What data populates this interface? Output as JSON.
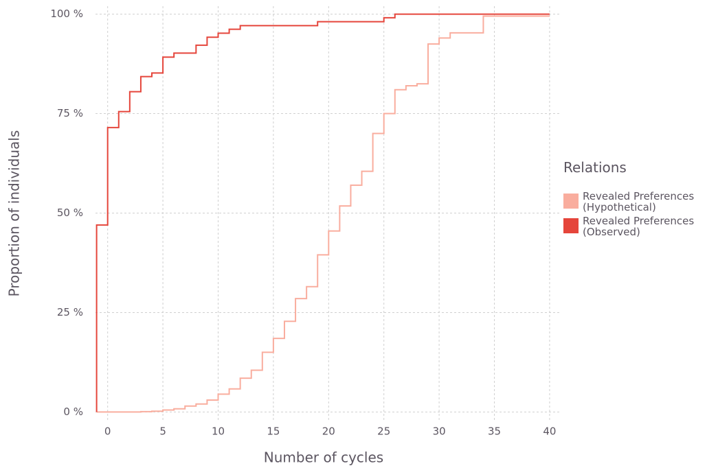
{
  "chart_data": {
    "type": "step",
    "xlabel": "Number of cycles",
    "ylabel": "Proportion of individuals",
    "legend_title": "Relations",
    "x": [
      -1,
      0,
      1,
      2,
      3,
      4,
      5,
      6,
      7,
      8,
      9,
      10,
      11,
      12,
      13,
      14,
      15,
      16,
      17,
      18,
      19,
      20,
      21,
      22,
      23,
      24,
      25,
      26,
      27,
      28,
      29,
      30,
      31,
      32,
      33,
      34,
      35,
      36,
      37,
      38,
      39,
      40
    ],
    "series": [
      {
        "name": "Revealed Preferences (Hypothetical)",
        "color": "#f9ad9e",
        "values": [
          0,
          0,
          0,
          0,
          0,
          0.1,
          0.2,
          0.5,
          0.8,
          1.5,
          2,
          3,
          4.5,
          5.8,
          8.5,
          10.5,
          15,
          18.5,
          22.8,
          28.5,
          31.5,
          39.5,
          45.5,
          51.8,
          57,
          60.5,
          70,
          75,
          81,
          82,
          82.5,
          92.5,
          94,
          95.3,
          95.3,
          95.3,
          99.5,
          99.5,
          99.5,
          99.5,
          99.5,
          99.5
        ]
      },
      {
        "name": "Revealed Preferences (Observed)",
        "color": "#e5453b",
        "values": [
          0,
          47,
          71.5,
          75.5,
          80.5,
          84.3,
          85.2,
          89.2,
          90.2,
          90.2,
          92.2,
          94.2,
          95.2,
          96.2,
          97.1,
          97.1,
          97.1,
          97.1,
          97.1,
          97.1,
          97.1,
          98.1,
          98.1,
          98.1,
          98.1,
          98.1,
          98.1,
          99.1,
          100,
          100,
          100,
          100,
          100,
          100,
          100,
          100,
          100,
          100,
          100,
          100,
          100,
          100
        ]
      }
    ],
    "xlim": [
      -1.1,
      41
    ],
    "ylim": [
      -2,
      102
    ],
    "xticks": [
      0,
      5,
      10,
      15,
      20,
      25,
      30,
      35,
      40
    ],
    "yticks": [
      {
        "value": 0,
        "label": "0 %"
      },
      {
        "value": 25,
        "label": "25 %"
      },
      {
        "value": 50,
        "label": "50 %"
      },
      {
        "value": 75,
        "label": "75 %"
      },
      {
        "value": 100,
        "label": "100 %"
      }
    ],
    "grid": true
  }
}
